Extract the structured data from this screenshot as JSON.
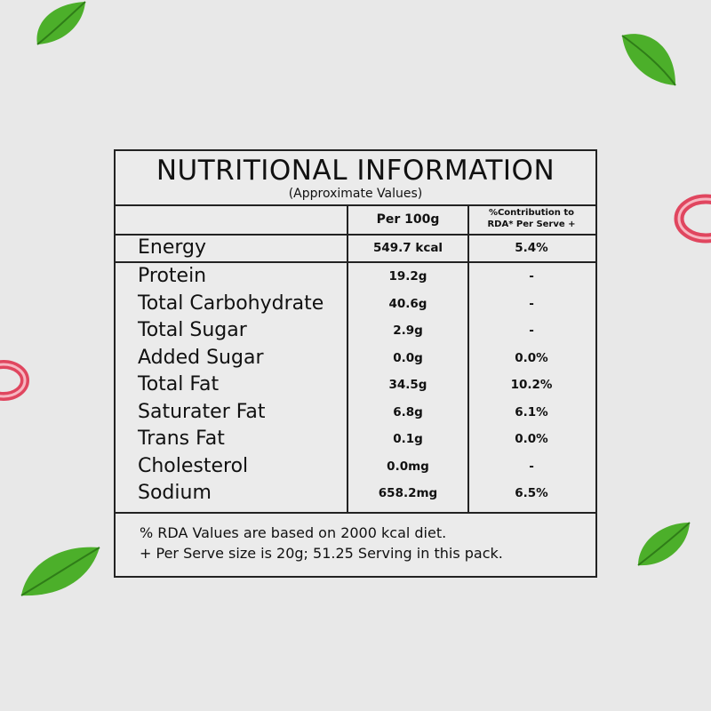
{
  "panel": {
    "title": "NUTRITIONAL INFORMATION",
    "subtitle": "(Approximate Values)"
  },
  "table": {
    "header_per100": "Per 100g",
    "header_rda_line1": "%Contribution to",
    "header_rda_line2": "RDA* Per Serve +",
    "rows": [
      {
        "name": "Energy",
        "per100": "549.7 kcal",
        "rda": "5.4%"
      },
      {
        "name": "Protein",
        "per100": "19.2g",
        "rda": "-"
      },
      {
        "name": "Total Carbohydrate",
        "per100": "40.6g",
        "rda": "-"
      },
      {
        "name": "Total Sugar",
        "per100": "2.9g",
        "rda": "-"
      },
      {
        "name": "Added Sugar",
        "per100": "0.0g",
        "rda": "0.0%"
      },
      {
        "name": "Total Fat",
        "per100": "34.5g",
        "rda": "10.2%"
      },
      {
        "name": "Saturater Fat",
        "per100": "6.8g",
        "rda": "6.1%"
      },
      {
        "name": "Trans Fat",
        "per100": "0.1g",
        "rda": "0.0%"
      },
      {
        "name": "Cholesterol",
        "per100": "0.0mg",
        "rda": "-"
      },
      {
        "name": "Sodium",
        "per100": "658.2mg",
        "rda": "6.5%"
      }
    ]
  },
  "footnote": {
    "line1": "% RDA Values are based on 2000 kcal diet.",
    "line2": "+ Per Serve size is 20g; 51.25 Serving in this pack."
  },
  "decor": {
    "leaf_color": "#4caf2a",
    "onion_color": "#e0465f",
    "leaf_icon": "basil-leaf-icon",
    "onion_icon": "onion-ring-icon"
  }
}
